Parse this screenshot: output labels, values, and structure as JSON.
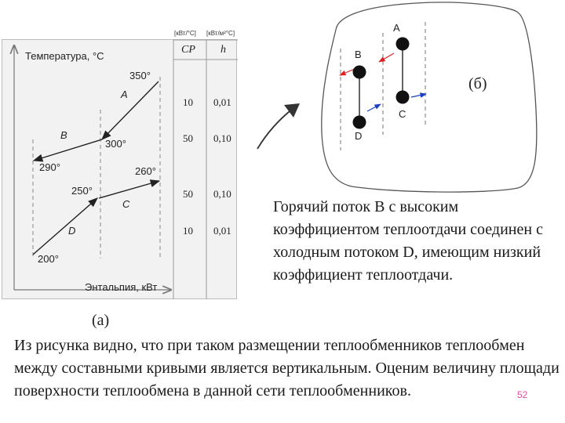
{
  "panel_a": {
    "y_axis_label": "Температура, °C",
    "x_axis_label": "Энтальпия, кВт",
    "caption": "(а)",
    "streams": {
      "A": "A",
      "B": "B",
      "C": "C",
      "D": "D"
    },
    "temperatures": {
      "t350": "350°",
      "t300": "300°",
      "t290": "290°",
      "t260": "260°",
      "t250": "250°",
      "t200": "200°"
    },
    "table": {
      "units": [
        "[кВт/°C]",
        "[кВт/м²°C]"
      ],
      "columns": [
        "CP",
        "h"
      ],
      "rows": [
        {
          "cp": "10",
          "h": "0,01"
        },
        {
          "cp": "50",
          "h": "0,10"
        },
        {
          "cp": "50",
          "h": "0,10"
        },
        {
          "cp": "10",
          "h": "0,01"
        }
      ]
    }
  },
  "panel_b": {
    "caption": "(б)",
    "nodes": {
      "A": "A",
      "B": "B",
      "C": "C",
      "D": "D"
    },
    "colors": {
      "hot_arrow": "#e02020",
      "cold_arrow": "#1a3fc0"
    }
  },
  "text": {
    "right_paragraph": "Горячий поток B с высоким коэффициентом теплоотдачи соединен с холодным потоком D, имеющим низкий коэффициент теплоотдачи.",
    "bottom_paragraph": "Из рисунка видно, что при таком размещении теплообменников теплообмен между составными кривыми является вертикальным. Оценим величину площади поверхности теплообмена в данной сети теплообменников.",
    "page_number": "52"
  }
}
